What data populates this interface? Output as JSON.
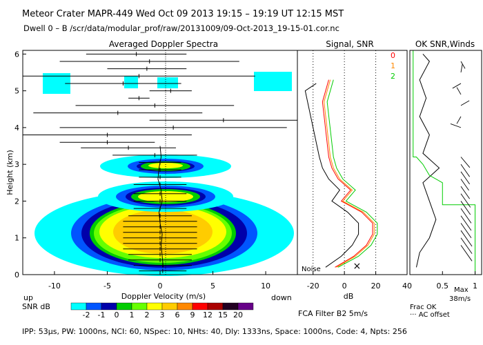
{
  "header": {
    "title_line": "Meteor Crater   MAPR-449   Wed Oct 09 2013 19:15 – 19:19 UT 12:15 MST",
    "dwell_line": "Dwell  0 –  B   /scr/data/modular_prof/raw/20131009/09-Oct-2013_19-15-01.cor.nc"
  },
  "panels": {
    "spectra_title": "Averaged Doppler Spectra",
    "signal_title": "Signal, SNR",
    "ok_title": "OK SNR,Winds",
    "ylabel": "Height (km)",
    "xlabel_spectra": "Doppler Velocity (m/s)",
    "up_label": "up",
    "down_label": "down",
    "xlabel_signal": "dB",
    "noise_label": "Noise",
    "filter_label": "FCA Filter B2   5m/s",
    "frac_ok": "Frac OK",
    "ac_offset": "··· AC offset",
    "max_label": "Max",
    "max_value": "38m/s",
    "snr_label": "SNR dB"
  },
  "footer": {
    "params": "IPP:  53µs,   PW: 1000ns,   NCI:  60,   NSpec: 10,  NHts: 40,   Dly: 1333ns,   Space: 1000ns,   Code: 4,   Npts: 256"
  },
  "colors": {
    "colorbar": [
      "#00ffff",
      "#0055ff",
      "#0000aa",
      "#00cc00",
      "#66ff00",
      "#ffff00",
      "#ffcc00",
      "#ff8800",
      "#ff0000",
      "#aa0000",
      "#220022",
      "#660088"
    ],
    "snr_lines": [
      "#ff0000",
      "#ff8800",
      "#00cc00"
    ]
  },
  "chart_data": [
    {
      "type": "heatmap",
      "title": "Averaged Doppler Spectra",
      "xlabel": "Doppler Velocity (m/s)",
      "ylabel": "Height (km)",
      "xlim": [
        -13,
        13
      ],
      "ylim": [
        0,
        6.1
      ],
      "xticks": [
        -10,
        -5,
        0,
        5,
        10
      ],
      "yticks": [
        0,
        1,
        2,
        3,
        4,
        5,
        6
      ],
      "colorbar_ticks": [
        "-2",
        "-1",
        "0",
        "1",
        "2",
        "3",
        "6",
        "9",
        "12",
        "15",
        "20"
      ],
      "mean_velocity_profile": {
        "heights": [
          0.2,
          0.5,
          0.8,
          1.1,
          1.4,
          1.7,
          2.0,
          2.3,
          2.6,
          2.9,
          3.2,
          3.5
        ],
        "velocity": [
          0.3,
          0.2,
          0.1,
          0.2,
          0.0,
          -0.1,
          0.2,
          0.1,
          -0.2,
          -0.1,
          0.1,
          0.0
        ]
      }
    },
    {
      "type": "line",
      "title": "Signal, SNR",
      "xlabel": "dB",
      "xlim": [
        -30,
        40
      ],
      "ylim": [
        0,
        6.1
      ],
      "xticks": [
        -20,
        0,
        20,
        40
      ],
      "series": [
        {
          "name": "Noise",
          "x": [
            -20,
            -20
          ],
          "y": [
            0,
            6.1
          ]
        },
        {
          "name": "Signal",
          "heights": [
            0.2,
            0.5,
            0.8,
            1.1,
            1.4,
            1.7,
            2.0,
            2.3,
            2.6,
            2.9,
            3.2,
            5.0,
            5.2
          ],
          "x": [
            -12,
            -2,
            5,
            9,
            9,
            2,
            -8,
            -3,
            -10,
            -14,
            -16,
            -25,
            -18
          ]
        },
        {
          "name": "0",
          "heights": [
            0.2,
            0.5,
            0.8,
            1.1,
            1.4,
            1.7,
            2.0,
            2.3,
            2.6,
            2.9,
            3.2,
            4.7,
            5.3
          ],
          "x": [
            -6,
            6,
            14,
            18,
            18,
            11,
            -2,
            4,
            -4,
            -8,
            -10,
            -14,
            -10
          ]
        },
        {
          "name": "1",
          "heights": [
            0.2,
            0.5,
            0.8,
            1.1,
            1.4,
            1.7,
            2.0,
            2.3,
            2.6,
            2.9,
            3.2,
            4.7,
            5.3
          ],
          "x": [
            -5,
            7,
            15,
            19,
            19,
            12,
            -1,
            5,
            -3,
            -7,
            -9,
            -13,
            -9
          ]
        },
        {
          "name": "2",
          "heights": [
            0.2,
            0.5,
            0.8,
            1.1,
            1.4,
            1.7,
            2.0,
            2.3,
            2.6,
            2.9,
            3.2,
            4.7,
            5.3
          ],
          "x": [
            -4,
            9,
            17,
            21,
            21,
            14,
            1,
            7,
            -1,
            -5,
            -7,
            -11,
            -7
          ]
        }
      ]
    },
    {
      "type": "line",
      "title": "OK SNR,Winds",
      "xlabel": "Frac OK",
      "xlim": [
        0,
        1.1
      ],
      "ylim": [
        0,
        6.1
      ],
      "xticks": [
        0.5,
        1
      ],
      "xtick_labels": [
        "0.5",
        "1"
      ],
      "series": [
        {
          "name": "Frac OK",
          "heights": [
            0.2,
            0.6,
            1.0,
            1.5,
            2.0,
            2.5,
            2.9,
            3.3,
            3.8,
            4.3,
            4.8,
            5.3,
            5.8,
            6.0
          ],
          "x": [
            0.1,
            0.15,
            0.3,
            0.4,
            0.3,
            0.2,
            0.45,
            0.2,
            0.3,
            0.15,
            0.25,
            0.15,
            0.3,
            0.2
          ]
        },
        {
          "name": "SNR OK",
          "heights": [
            0,
            1.9,
            1.9,
            2.5,
            2.7,
            3.0,
            3.2,
            3.2,
            6.1
          ],
          "x": [
            1,
            1,
            0.5,
            0.5,
            0.3,
            0.2,
            0.1,
            0.05,
            0.05
          ]
        }
      ],
      "wind_max": "38m/s"
    }
  ]
}
